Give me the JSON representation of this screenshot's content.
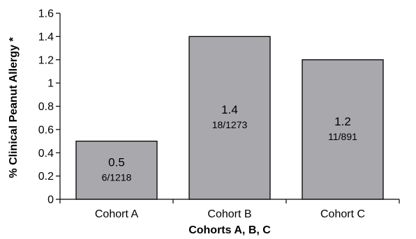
{
  "chart_data": {
    "type": "bar",
    "categories": [
      "Cohort A",
      "Cohort B",
      "Cohort C"
    ],
    "values": [
      0.5,
      1.4,
      1.2
    ],
    "value_labels": [
      "0.5",
      "1.4",
      "1.2"
    ],
    "count_labels": [
      "6/1218",
      "18/1273",
      "11/891"
    ],
    "xlabel": "Cohorts A, B, C",
    "ylabel": "% Clinical Peanut Allergy *",
    "ylim": [
      0,
      1.6
    ],
    "yticks": [
      "0",
      "0.2",
      "0.4",
      "0.6",
      "0.8",
      "1",
      "1.2",
      "1.4",
      "1.6"
    ],
    "grid": false,
    "legend": "none",
    "colors": {
      "bar_fill": "#a8a8ad",
      "bar_stroke": "#000000",
      "axis": "#000000"
    }
  }
}
